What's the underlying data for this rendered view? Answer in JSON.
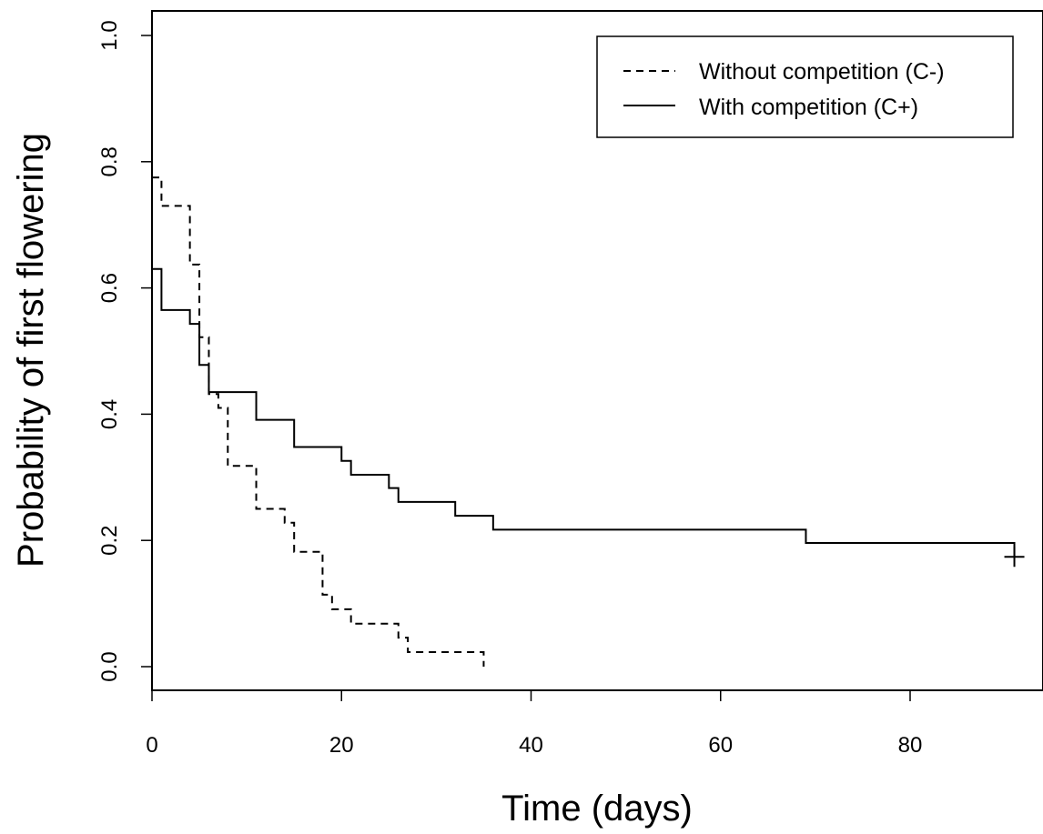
{
  "chart_data": {
    "type": "line",
    "subtype": "kaplan-meier-step",
    "title": "",
    "xlabel": "Time (days)",
    "ylabel": "Probability of first flowering",
    "xlim": [
      0,
      94
    ],
    "ylim": [
      -0.04,
      1.04
    ],
    "x_ticks": [
      0,
      20,
      40,
      60,
      80
    ],
    "y_ticks": [
      0.0,
      0.2,
      0.4,
      0.6,
      0.8,
      1.0
    ],
    "x_tick_labels": [
      "0",
      "20",
      "40",
      "60",
      "80"
    ],
    "y_tick_labels": [
      "0.0",
      "0.2",
      "0.4",
      "0.6",
      "0.8",
      "1.0"
    ],
    "grid": false,
    "legend_position": "top-right",
    "series": [
      {
        "name": "Without competition (C-)",
        "line_style": "dashed",
        "color": "#000000",
        "x": [
          0,
          1,
          4,
          5,
          6,
          7,
          8,
          11,
          14,
          15,
          18,
          19,
          21,
          26,
          27,
          35
        ],
        "y": [
          0.775,
          0.73,
          0.637,
          0.522,
          0.432,
          0.41,
          0.318,
          0.25,
          0.228,
          0.182,
          0.114,
          0.091,
          0.068,
          0.046,
          0.023,
          0.0
        ]
      },
      {
        "name": "With competition (C+)",
        "line_style": "solid",
        "color": "#000000",
        "x": [
          0,
          1,
          4,
          5,
          6,
          11,
          15,
          20,
          21,
          25,
          26,
          32,
          36,
          69
        ],
        "y": [
          0.63,
          0.565,
          0.543,
          0.478,
          0.435,
          0.391,
          0.348,
          0.326,
          0.304,
          0.283,
          0.261,
          0.239,
          0.217,
          0.196
        ],
        "x_end": 91,
        "censor_marks": [
          {
            "x": 91,
            "y": 0.174
          }
        ]
      }
    ]
  }
}
